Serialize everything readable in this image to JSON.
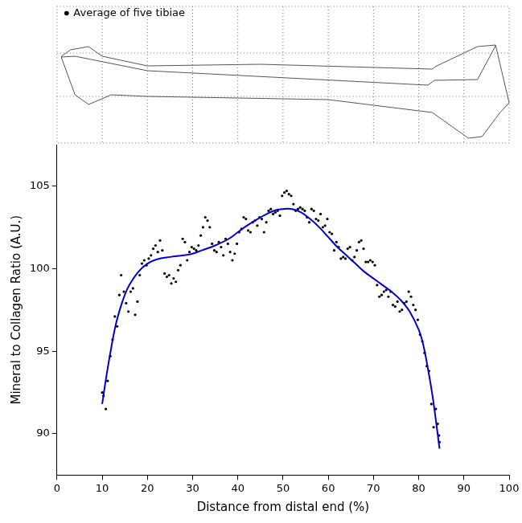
{
  "chart_data": {
    "type": "scatter",
    "x_label": "Distance from distal end (%)",
    "y_label": "Mineral to Collagen Ratio (A.U.)",
    "xlim": [
      0,
      100
    ],
    "xticks": [
      0,
      10,
      20,
      30,
      40,
      50,
      60,
      70,
      80,
      90,
      100
    ],
    "ylim": [
      87.5,
      107.5
    ],
    "yticks": [
      90,
      95,
      100,
      105
    ],
    "grid": false,
    "legend": "upper left",
    "series": [
      {
        "name": "Average of five tibiae",
        "type": "scatter",
        "color": "#000000",
        "marker": "circle",
        "x": [
          10,
          10.3,
          10.8,
          11.2,
          11.8,
          12.3,
          12.8,
          13.3,
          13.8,
          14.2,
          14.8,
          15.3,
          15.8,
          16.3,
          16.8,
          17.3,
          17.8,
          18.3,
          18.8,
          19.3,
          19.8,
          20.3,
          20.8,
          21.3,
          21.8,
          22.3,
          22.8,
          23.3,
          23.8,
          24.3,
          24.8,
          25.3,
          25.8,
          26.3,
          26.8,
          27.3,
          27.8,
          28.3,
          28.8,
          29.3,
          29.8,
          30.3,
          30.8,
          31.3,
          31.8,
          32.3,
          32.8,
          33.3,
          33.8,
          34.3,
          34.8,
          35.3,
          35.8,
          36.3,
          36.8,
          37.3,
          37.8,
          38.3,
          38.8,
          39.3,
          39.8,
          40.3,
          40.8,
          41.3,
          41.8,
          42.3,
          42.8,
          43.3,
          43.8,
          44.3,
          44.8,
          45.3,
          45.8,
          46.3,
          46.8,
          47.3,
          47.8,
          48.3,
          48.8,
          49.3,
          49.8,
          50.3,
          50.8,
          51.3,
          51.8,
          52.3,
          52.8,
          53.3,
          53.8,
          54.3,
          54.8,
          55.3,
          55.8,
          56.3,
          56.8,
          57.3,
          57.8,
          58.3,
          58.8,
          59.3,
          59.8,
          60.3,
          60.8,
          61.3,
          61.8,
          62.3,
          62.8,
          63.3,
          63.8,
          64.3,
          64.8,
          65.3,
          65.8,
          66.3,
          66.8,
          67.3,
          67.8,
          68.3,
          68.8,
          69.3,
          69.8,
          70.3,
          70.8,
          71.3,
          71.8,
          72.3,
          72.8,
          73.3,
          73.8,
          74.3,
          74.8,
          75.3,
          75.8,
          76.3,
          76.8,
          77.3,
          77.8,
          78.3,
          78.8,
          79.3,
          79.8,
          80.3,
          80.8,
          81.3,
          81.8,
          82.3,
          82.8,
          83.3,
          83.8,
          84.2,
          84.5,
          84.6
        ],
        "values": [
          92.5,
          92.3,
          91.5,
          93.2,
          94.7,
          95.7,
          97.1,
          96.5,
          98.4,
          99.6,
          98.6,
          97.9,
          97.4,
          98.6,
          98.8,
          97.2,
          98.0,
          99.6,
          100.3,
          100.5,
          100.2,
          100.6,
          100.8,
          101.2,
          101.4,
          101.0,
          101.7,
          101.1,
          99.7,
          99.5,
          99.6,
          99.1,
          99.4,
          99.2,
          99.9,
          100.2,
          101.8,
          101.6,
          100.5,
          101.0,
          101.3,
          101.2,
          101.1,
          101.4,
          102.0,
          102.5,
          103.1,
          102.9,
          102.5,
          101.5,
          101.1,
          101.0,
          101.6,
          101.3,
          100.8,
          101.8,
          101.5,
          101.0,
          100.5,
          100.9,
          101.5,
          102.2,
          102.4,
          103.1,
          103.0,
          102.3,
          102.2,
          102.8,
          102.9,
          102.6,
          103.1,
          103.0,
          102.2,
          102.8,
          103.5,
          103.6,
          103.3,
          103.4,
          103.5,
          103.2,
          104.4,
          104.6,
          104.7,
          104.5,
          104.4,
          103.9,
          103.5,
          103.6,
          103.7,
          103.6,
          103.5,
          103.1,
          102.8,
          103.6,
          103.5,
          103.0,
          102.9,
          103.3,
          102.5,
          102.6,
          103.0,
          102.2,
          102.1,
          101.1,
          101.6,
          101.3,
          100.6,
          100.7,
          100.6,
          101.2,
          101.3,
          100.5,
          100.7,
          101.1,
          101.6,
          101.7,
          101.2,
          100.4,
          100.4,
          100.5,
          100.4,
          100.2,
          99.0,
          98.3,
          98.4,
          98.6,
          98.7,
          98.3,
          98.6,
          97.8,
          97.7,
          98.0,
          97.4,
          97.5,
          97.9,
          98.0,
          98.6,
          98.3,
          97.8,
          97.5,
          96.9,
          96.0,
          95.6,
          94.9,
          94.1,
          93.8,
          91.8,
          90.4,
          91.5,
          90.6,
          89.9,
          89.5
        ]
      },
      {
        "type": "line",
        "color": "#0000cc",
        "line_style": "solid",
        "x": [
          10,
          11,
          12,
          13,
          14,
          15,
          16,
          18,
          20,
          22,
          25,
          28,
          30,
          32,
          35,
          38,
          40,
          42,
          45,
          48,
          50,
          52,
          54,
          56,
          58,
          60,
          62,
          64,
          66,
          68,
          70,
          72,
          74,
          76,
          78,
          80,
          81,
          82,
          83,
          84,
          84.6
        ],
        "values": [
          91.8,
          93.6,
          95.2,
          96.6,
          97.6,
          98.4,
          99.0,
          99.8,
          100.3,
          100.55,
          100.7,
          100.8,
          100.9,
          101.1,
          101.4,
          101.8,
          102.2,
          102.6,
          103.1,
          103.5,
          103.6,
          103.6,
          103.4,
          103.0,
          102.5,
          101.9,
          101.3,
          100.8,
          100.3,
          99.8,
          99.4,
          99.0,
          98.6,
          98.1,
          97.4,
          96.3,
          95.4,
          94.0,
          92.4,
          90.4,
          89.1
        ]
      }
    ]
  }
}
